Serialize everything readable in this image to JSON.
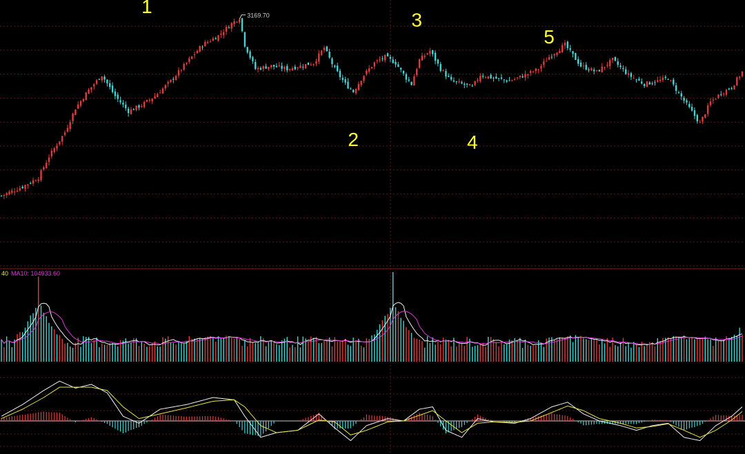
{
  "chart_data": {
    "type": "candlestick",
    "colors": {
      "up": "#e23b3b",
      "down": "#3fd6d6",
      "grid": "#5a1a1a",
      "divider": "#8b1a1a",
      "ma5": "#f2f2f2",
      "ma10": "#d83ad8",
      "wave_label": "#ffff33",
      "dif": "#f2f2f2",
      "dea": "#e6e64a",
      "tick_text": "#cfcfcf"
    },
    "price_panel": {
      "ylim": [
        2350,
        3210
      ],
      "high_label": "3169.70",
      "wave_labels": [
        {
          "text": "1",
          "x": 55,
          "y": 3185
        },
        {
          "text": "2",
          "x": 133,
          "y": 2745
        },
        {
          "text": "3",
          "x": 157,
          "y": 3140
        },
        {
          "text": "4",
          "x": 178,
          "y": 2735
        },
        {
          "text": "5",
          "x": 207,
          "y": 3085
        }
      ],
      "close_path": [
        [
          0,
          2580
        ],
        [
          8,
          2610
        ],
        [
          14,
          2640
        ],
        [
          18,
          2710
        ],
        [
          24,
          2790
        ],
        [
          28,
          2870
        ],
        [
          33,
          2930
        ],
        [
          38,
          2980
        ],
        [
          43,
          2910
        ],
        [
          48,
          2860
        ],
        [
          53,
          2880
        ],
        [
          58,
          2910
        ],
        [
          64,
          2960
        ],
        [
          70,
          3020
        ],
        [
          76,
          3080
        ],
        [
          82,
          3110
        ],
        [
          87,
          3150
        ],
        [
          90,
          3169.7
        ],
        [
          92,
          3080
        ],
        [
          96,
          3000
        ],
        [
          102,
          3010
        ],
        [
          108,
          3000
        ],
        [
          113,
          3010
        ],
        [
          118,
          3020
        ],
        [
          122,
          3070
        ],
        [
          126,
          3000
        ],
        [
          130,
          2950
        ],
        [
          133,
          2925
        ],
        [
          137,
          2980
        ],
        [
          141,
          3020
        ],
        [
          145,
          3040
        ],
        [
          149,
          3020
        ],
        [
          153,
          2970
        ],
        [
          155,
          2950
        ],
        [
          158,
          3030
        ],
        [
          162,
          3060
        ],
        [
          166,
          3000
        ],
        [
          170,
          2960
        ],
        [
          174,
          2950
        ],
        [
          178,
          2940
        ],
        [
          181,
          2980
        ],
        [
          186,
          2970
        ],
        [
          192,
          2960
        ],
        [
          198,
          2980
        ],
        [
          203,
          3000
        ],
        [
          207,
          3040
        ],
        [
          213,
          3080
        ],
        [
          219,
          3010
        ],
        [
          225,
          2990
        ],
        [
          231,
          3030
        ],
        [
          237,
          2980
        ],
        [
          243,
          2950
        ],
        [
          248,
          2960
        ],
        [
          252,
          2970
        ],
        [
          256,
          2920
        ],
        [
          260,
          2870
        ],
        [
          264,
          2820
        ],
        [
          268,
          2890
        ],
        [
          272,
          2920
        ],
        [
          276,
          2940
        ],
        [
          280,
          2990
        ]
      ]
    },
    "volume_panel": {
      "legend_left": "40",
      "legend_ma10": "MA10: 104933.60",
      "spikes": [
        {
          "x": 14,
          "height": 0.95
        },
        {
          "x": 81,
          "height": 0.22
        },
        {
          "x": 148,
          "height": 1.0
        },
        {
          "x": 216,
          "height": 0.22
        },
        {
          "x": 259,
          "height": 0.25
        },
        {
          "x": 279,
          "height": 0.38
        }
      ],
      "base_level": 0.22
    },
    "macd_panel": {
      "zero_line": true,
      "dif_path": [
        [
          0,
          0.1
        ],
        [
          8,
          0.35
        ],
        [
          16,
          0.65
        ],
        [
          22,
          0.85
        ],
        [
          28,
          0.7
        ],
        [
          34,
          0.78
        ],
        [
          40,
          0.6
        ],
        [
          46,
          0.1
        ],
        [
          52,
          -0.05
        ],
        [
          60,
          0.25
        ],
        [
          70,
          0.35
        ],
        [
          80,
          0.5
        ],
        [
          88,
          0.45
        ],
        [
          92,
          0.1
        ],
        [
          98,
          -0.35
        ],
        [
          104,
          -0.25
        ],
        [
          112,
          -0.2
        ],
        [
          120,
          0.15
        ],
        [
          126,
          -0.15
        ],
        [
          132,
          -0.42
        ],
        [
          138,
          -0.1
        ],
        [
          146,
          0.05
        ],
        [
          152,
          0.0
        ],
        [
          158,
          0.25
        ],
        [
          163,
          0.3
        ],
        [
          168,
          -0.2
        ],
        [
          174,
          -0.35
        ],
        [
          180,
          0.05
        ],
        [
          186,
          -0.02
        ],
        [
          194,
          -0.05
        ],
        [
          200,
          0.05
        ],
        [
          208,
          0.3
        ],
        [
          214,
          0.4
        ],
        [
          220,
          0.15
        ],
        [
          226,
          0.0
        ],
        [
          234,
          -0.1
        ],
        [
          240,
          -0.2
        ],
        [
          246,
          -0.1
        ],
        [
          252,
          -0.05
        ],
        [
          258,
          -0.35
        ],
        [
          264,
          -0.42
        ],
        [
          270,
          -0.1
        ],
        [
          276,
          0.1
        ],
        [
          280,
          0.3
        ]
      ],
      "dea_path": [
        [
          0,
          0.05
        ],
        [
          8,
          0.25
        ],
        [
          16,
          0.5
        ],
        [
          22,
          0.72
        ],
        [
          28,
          0.72
        ],
        [
          34,
          0.72
        ],
        [
          40,
          0.65
        ],
        [
          46,
          0.3
        ],
        [
          52,
          0.05
        ],
        [
          60,
          0.15
        ],
        [
          70,
          0.28
        ],
        [
          80,
          0.42
        ],
        [
          88,
          0.45
        ],
        [
          92,
          0.3
        ],
        [
          98,
          -0.1
        ],
        [
          104,
          -0.25
        ],
        [
          112,
          -0.2
        ],
        [
          120,
          0.02
        ],
        [
          126,
          -0.02
        ],
        [
          132,
          -0.3
        ],
        [
          138,
          -0.2
        ],
        [
          146,
          -0.02
        ],
        [
          152,
          0.0
        ],
        [
          158,
          0.12
        ],
        [
          163,
          0.22
        ],
        [
          168,
          0.0
        ],
        [
          174,
          -0.25
        ],
        [
          180,
          -0.05
        ],
        [
          186,
          -0.02
        ],
        [
          194,
          -0.03
        ],
        [
          200,
          0.0
        ],
        [
          208,
          0.18
        ],
        [
          214,
          0.32
        ],
        [
          220,
          0.22
        ],
        [
          226,
          0.05
        ],
        [
          234,
          -0.05
        ],
        [
          240,
          -0.15
        ],
        [
          246,
          -0.12
        ],
        [
          252,
          -0.06
        ],
        [
          258,
          -0.2
        ],
        [
          264,
          -0.35
        ],
        [
          270,
          -0.2
        ],
        [
          276,
          0.02
        ],
        [
          280,
          0.2
        ]
      ]
    },
    "x_count": 281
  }
}
